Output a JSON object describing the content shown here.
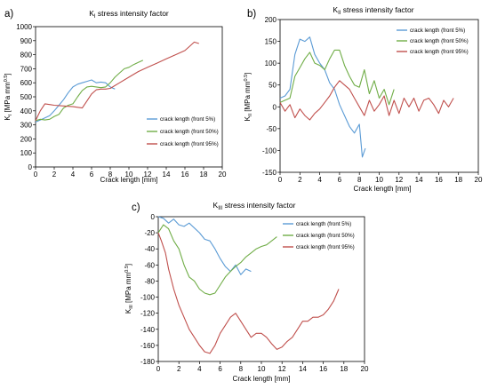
{
  "chart_data": [
    {
      "panel_label": "a)",
      "type": "line",
      "title_parts": [
        "K",
        "I",
        " stress intensity factor"
      ],
      "xlabel": "Crack length [mm]",
      "ylabel_parts": [
        "K",
        "I",
        " [MPa mm",
        "0.5",
        "]"
      ],
      "xlim": [
        0,
        20
      ],
      "ylim": [
        0,
        1000
      ],
      "xticks": [
        0,
        2,
        4,
        6,
        8,
        10,
        12,
        14,
        16,
        18,
        20
      ],
      "yticks": [
        0,
        100,
        200,
        300,
        400,
        500,
        600,
        700,
        800,
        900,
        1000
      ],
      "grid": false,
      "legend_position": "center-right",
      "series": [
        {
          "name": "crack length (front 5%)",
          "color": "#5b9bd5",
          "x": [
            0,
            0.5,
            1,
            1.5,
            2,
            2.5,
            3,
            3.5,
            4,
            4.5,
            5,
            5.5,
            6,
            6.5,
            7,
            7.5,
            8,
            8.5
          ],
          "y": [
            320,
            335,
            350,
            365,
            400,
            440,
            480,
            530,
            570,
            590,
            600,
            610,
            620,
            600,
            605,
            600,
            570,
            555
          ]
        },
        {
          "name": "crack length (front 50%)",
          "color": "#70ad47",
          "x": [
            0,
            0.5,
            1,
            1.5,
            2,
            2.5,
            3,
            3.5,
            4,
            4.5,
            5,
            5.5,
            6,
            6.5,
            7,
            7.5,
            8,
            8.5,
            9,
            9.5,
            10,
            10.5,
            11,
            11.5
          ],
          "y": [
            330,
            340,
            335,
            340,
            360,
            375,
            420,
            440,
            450,
            500,
            545,
            570,
            575,
            570,
            565,
            570,
            600,
            640,
            670,
            700,
            710,
            730,
            745,
            760
          ]
        },
        {
          "name": "crack length (front 95%)",
          "color": "#c0504d",
          "x": [
            0,
            0.5,
            1,
            1.5,
            2,
            3,
            4,
            5,
            5.5,
            6,
            6.5,
            7,
            7.5,
            8,
            9,
            10,
            11,
            12,
            13,
            14,
            15,
            16,
            16.5,
            17,
            17.5
          ],
          "y": [
            330,
            400,
            450,
            445,
            440,
            435,
            430,
            420,
            470,
            520,
            550,
            555,
            555,
            560,
            600,
            640,
            680,
            710,
            740,
            770,
            800,
            830,
            860,
            890,
            880
          ]
        }
      ]
    },
    {
      "panel_label": "b)",
      "type": "line",
      "title_parts": [
        "K",
        "II",
        " stress intensity factor"
      ],
      "xlabel": "Crack length [mm]",
      "ylabel_parts": [
        "K",
        "II",
        " [MPa mm",
        "0.5",
        "]"
      ],
      "xlim": [
        0,
        20
      ],
      "ylim": [
        -150,
        200
      ],
      "xticks": [
        0,
        2,
        4,
        6,
        8,
        10,
        12,
        14,
        16,
        18,
        20
      ],
      "yticks": [
        -150,
        -100,
        -50,
        0,
        50,
        100,
        150,
        200
      ],
      "grid": false,
      "legend_position": "top-right",
      "series": [
        {
          "name": "crack length (front 5%)",
          "color": "#5b9bd5",
          "x": [
            0,
            0.5,
            1,
            1.5,
            2,
            2.5,
            3,
            3.5,
            4,
            4.5,
            5,
            5.5,
            6,
            6.5,
            7,
            7.5,
            8,
            8.3,
            8.6
          ],
          "y": [
            20,
            25,
            40,
            120,
            155,
            150,
            160,
            120,
            100,
            85,
            55,
            40,
            5,
            -20,
            -45,
            -60,
            -40,
            -115,
            -95
          ]
        },
        {
          "name": "crack length (front 50%)",
          "color": "#70ad47",
          "x": [
            0,
            0.5,
            1,
            1.5,
            2,
            2.5,
            3,
            3.5,
            4,
            4.5,
            5,
            5.5,
            6,
            6.5,
            7,
            7.5,
            8,
            8.5,
            9,
            9.5,
            10,
            10.5,
            11,
            11.5
          ],
          "y": [
            10,
            15,
            20,
            70,
            90,
            110,
            125,
            100,
            95,
            85,
            110,
            130,
            130,
            95,
            70,
            50,
            45,
            85,
            30,
            60,
            20,
            40,
            5,
            40
          ]
        },
        {
          "name": "crack length (front 95%)",
          "color": "#c0504d",
          "x": [
            0,
            0.5,
            1,
            1.5,
            2,
            2.5,
            3,
            3.5,
            4,
            4.5,
            5,
            5.5,
            6,
            6.5,
            7,
            7.5,
            8,
            8.5,
            9,
            9.5,
            10,
            10.5,
            11,
            11.5,
            12,
            12.5,
            13,
            13.5,
            14,
            14.5,
            15,
            15.5,
            16,
            16.5,
            17,
            17.5
          ],
          "y": [
            10,
            -10,
            5,
            -25,
            -5,
            -20,
            -30,
            -15,
            -5,
            10,
            25,
            45,
            60,
            50,
            40,
            20,
            0,
            -20,
            15,
            -10,
            5,
            25,
            -20,
            15,
            -15,
            20,
            0,
            20,
            -10,
            15,
            20,
            5,
            -15,
            15,
            0,
            20
          ]
        }
      ]
    },
    {
      "panel_label": "c)",
      "type": "line",
      "title_parts": [
        "K",
        "III",
        " stress intensity factor"
      ],
      "xlabel": "Crack length [mm]",
      "ylabel_parts": [
        "K",
        "III",
        " [MPa mm",
        "0.5",
        "]"
      ],
      "xlim": [
        0,
        20
      ],
      "ylim": [
        -180,
        0
      ],
      "xticks": [
        0,
        2,
        4,
        6,
        8,
        10,
        12,
        14,
        16,
        18,
        20
      ],
      "yticks": [
        -180,
        -160,
        -140,
        -120,
        -100,
        -80,
        -60,
        -40,
        -20,
        0
      ],
      "grid": false,
      "legend_position": "top-right",
      "series": [
        {
          "name": "crack length (front 5%)",
          "color": "#5b9bd5",
          "x": [
            0,
            0.5,
            1,
            1.5,
            2,
            2.5,
            3,
            3.5,
            4,
            4.5,
            5,
            5.5,
            6,
            6.5,
            7,
            7.5,
            8,
            8.5,
            9
          ],
          "y": [
            0,
            -2,
            -8,
            -3,
            -10,
            -12,
            -8,
            -14,
            -20,
            -28,
            -30,
            -40,
            -52,
            -62,
            -68,
            -60,
            -72,
            -65,
            -68
          ]
        },
        {
          "name": "crack length (front 50%)",
          "color": "#70ad47",
          "x": [
            0,
            0.5,
            1,
            1.5,
            2,
            2.5,
            3,
            3.5,
            4,
            4.5,
            5,
            5.5,
            6,
            6.5,
            7,
            7.5,
            8,
            8.5,
            9,
            9.5,
            10,
            10.5,
            11,
            11.5
          ],
          "y": [
            -20,
            -10,
            -15,
            -30,
            -40,
            -60,
            -75,
            -80,
            -90,
            -95,
            -97,
            -95,
            -85,
            -75,
            -68,
            -62,
            -57,
            -50,
            -45,
            -40,
            -37,
            -35,
            -30,
            -25
          ]
        },
        {
          "name": "crack length (front 95%)",
          "color": "#c0504d",
          "x": [
            0,
            0.3,
            0.7,
            1,
            1.5,
            2,
            2.5,
            3,
            3.5,
            4,
            4.5,
            5,
            5.5,
            6,
            6.5,
            7,
            7.5,
            8,
            8.5,
            9,
            9.5,
            10,
            10.5,
            11,
            11.5,
            12,
            12.5,
            13,
            13.5,
            14,
            14.5,
            15,
            15.5,
            16,
            16.5,
            17,
            17.5
          ],
          "y": [
            -20,
            -30,
            -45,
            -65,
            -90,
            -110,
            -125,
            -140,
            -150,
            -160,
            -168,
            -170,
            -160,
            -145,
            -135,
            -125,
            -120,
            -130,
            -140,
            -150,
            -145,
            -145,
            -150,
            -158,
            -165,
            -162,
            -155,
            -150,
            -140,
            -130,
            -130,
            -125,
            -125,
            -122,
            -115,
            -105,
            -90
          ]
        }
      ]
    }
  ]
}
